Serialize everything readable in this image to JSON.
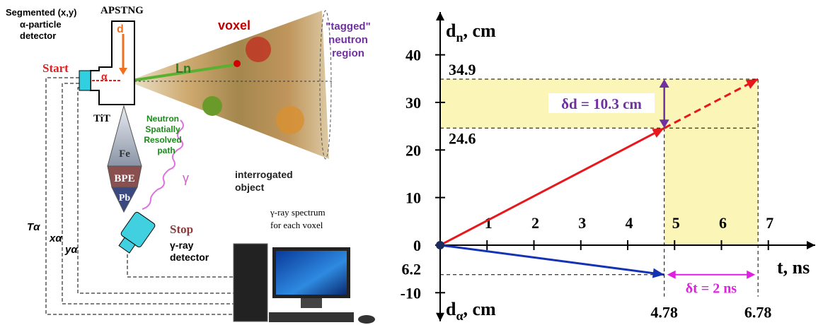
{
  "diagram": {
    "detector_label": [
      "Segmented (x,y)",
      "α-particle",
      "detector"
    ],
    "generator": "APSTNG",
    "d": "d",
    "voxel": "voxel",
    "tagged": [
      "\"tagged\"",
      "neutron",
      "region"
    ],
    "start": "Start",
    "alpha": "α",
    "ln": "Ln",
    "tit": "TiT",
    "path": [
      "Neutron",
      "Spatially",
      "Resolved",
      "path"
    ],
    "shield": [
      "Fe",
      "BPE",
      "Pb"
    ],
    "gamma": "γ",
    "object": [
      "interrogated",
      "object"
    ],
    "stop": "Stop",
    "gamma_detector": [
      "γ-ray",
      "detector"
    ],
    "spectrum": [
      "γ-ray spectrum",
      "for each voxel"
    ],
    "signals": [
      "Tα",
      "xα",
      "yα"
    ]
  },
  "chart_data": {
    "type": "line",
    "y_label": {
      "main": "d",
      "sub": "n",
      "rest": ", cm"
    },
    "x_label": "t, ns",
    "y_label_bottom": {
      "main": "d",
      "sub": "α",
      "rest": ", cm"
    },
    "xlim": [
      0,
      8
    ],
    "ylim": [
      -16,
      49
    ],
    "xticks": [
      1,
      2,
      3,
      4,
      5,
      6,
      7
    ],
    "yticks": [
      -10,
      0,
      10,
      20,
      30,
      40
    ],
    "series": [
      {
        "color": "#e8171b",
        "x": [
          0,
          4.78,
          6.78
        ],
        "values": [
          0,
          24.6,
          34.9
        ]
      },
      {
        "color": "#1432b4",
        "x": [
          0,
          4.78
        ],
        "values": [
          0,
          -6.2
        ],
        "value_labels": [
          null,
          "6.2"
        ]
      }
    ],
    "annotations": [
      {
        "text": "δd = 10.3 cm",
        "color": "#7030a0"
      },
      {
        "text": "δt = 2 ns",
        "color": "#e020e0"
      }
    ],
    "shade": "#fbf5b8"
  }
}
